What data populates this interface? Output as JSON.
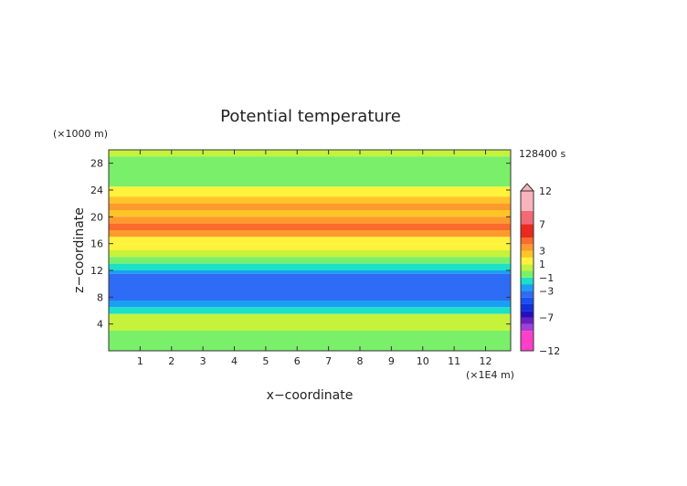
{
  "chart_data": {
    "type": "heatmap",
    "title": "Potential temperature",
    "xlabel": "x−coordinate",
    "ylabel": "z−coordinate",
    "x_unit": "(×1E4 m)",
    "y_unit": "(×1000 m)",
    "time_label": "128400 s",
    "xlim": [
      0,
      12.8
    ],
    "ylim": [
      0,
      30
    ],
    "x_ticks": [
      "1",
      "2",
      "3",
      "4",
      "5",
      "6",
      "7",
      "8",
      "9",
      "10",
      "11",
      "12"
    ],
    "y_ticks": [
      "4",
      "8",
      "12",
      "16",
      "20",
      "24",
      "28"
    ],
    "colorbar_labels": [
      "12",
      "7",
      "3",
      "1",
      "−1",
      "−3",
      "−7",
      "−12"
    ],
    "colorbar": [
      {
        "lo": -12,
        "hi": -9,
        "color": "#ff3fc8"
      },
      {
        "lo": -9,
        "hi": -8,
        "color": "#a040d8"
      },
      {
        "lo": -8,
        "hi": -7,
        "color": "#6a20c0"
      },
      {
        "lo": -7,
        "hi": -6,
        "color": "#2010c0"
      },
      {
        "lo": -6,
        "hi": -5,
        "color": "#1030d8"
      },
      {
        "lo": -5,
        "hi": -4,
        "color": "#1d4ef0"
      },
      {
        "lo": -4,
        "hi": -3,
        "color": "#2f6cf5"
      },
      {
        "lo": -3,
        "hi": -2,
        "color": "#1aa0f2"
      },
      {
        "lo": -2,
        "hi": -1,
        "color": "#1de0c8"
      },
      {
        "lo": -1,
        "hi": 0,
        "color": "#7af06a"
      },
      {
        "lo": 0,
        "hi": 1,
        "color": "#c6f23c"
      },
      {
        "lo": 1,
        "hi": 2,
        "color": "#fff23a"
      },
      {
        "lo": 2,
        "hi": 3,
        "color": "#ffc428"
      },
      {
        "lo": 3,
        "hi": 4,
        "color": "#fd9a2c"
      },
      {
        "lo": 4,
        "hi": 5,
        "color": "#fa6b2c"
      },
      {
        "lo": 5,
        "hi": 7,
        "color": "#ea2a1e"
      },
      {
        "lo": 7,
        "hi": 9,
        "color": "#f26a76"
      },
      {
        "lo": 9,
        "hi": 12,
        "color": "#f7b4bc"
      }
    ],
    "z_bands": [
      {
        "z": [
          29.0,
          30.0
        ],
        "value": 0.5
      },
      {
        "z": [
          24.5,
          29.0
        ],
        "value": -0.4
      },
      {
        "z": [
          23.0,
          24.5
        ],
        "value": 1.5
      },
      {
        "z": [
          22.0,
          23.0
        ],
        "value": 2.5
      },
      {
        "z": [
          21.0,
          22.0
        ],
        "value": 3.5
      },
      {
        "z": [
          20.0,
          21.0
        ],
        "value": 2.5
      },
      {
        "z": [
          19.0,
          20.0
        ],
        "value": 3.5
      },
      {
        "z": [
          18.0,
          19.0
        ],
        "value": 4.3
      },
      {
        "z": [
          17.0,
          18.0
        ],
        "value": 3.0
      },
      {
        "z": [
          16.0,
          17.0
        ],
        "value": 1.5
      },
      {
        "z": [
          15.0,
          16.0
        ],
        "value": 1.6
      },
      {
        "z": [
          14.0,
          15.0
        ],
        "value": 0.5
      },
      {
        "z": [
          13.0,
          14.0
        ],
        "value": -0.5
      },
      {
        "z": [
          12.0,
          13.0
        ],
        "value": -1.5
      },
      {
        "z": [
          11.5,
          12.0
        ],
        "value": -2.5
      },
      {
        "z": [
          7.5,
          11.5
        ],
        "value": -3.5
      },
      {
        "z": [
          6.5,
          7.5
        ],
        "value": -2.5
      },
      {
        "z": [
          5.5,
          6.5
        ],
        "value": -1.5
      },
      {
        "z": [
          3.0,
          5.5
        ],
        "value": 0.5
      },
      {
        "z": [
          0.0,
          3.0
        ],
        "value": -0.5
      }
    ]
  }
}
